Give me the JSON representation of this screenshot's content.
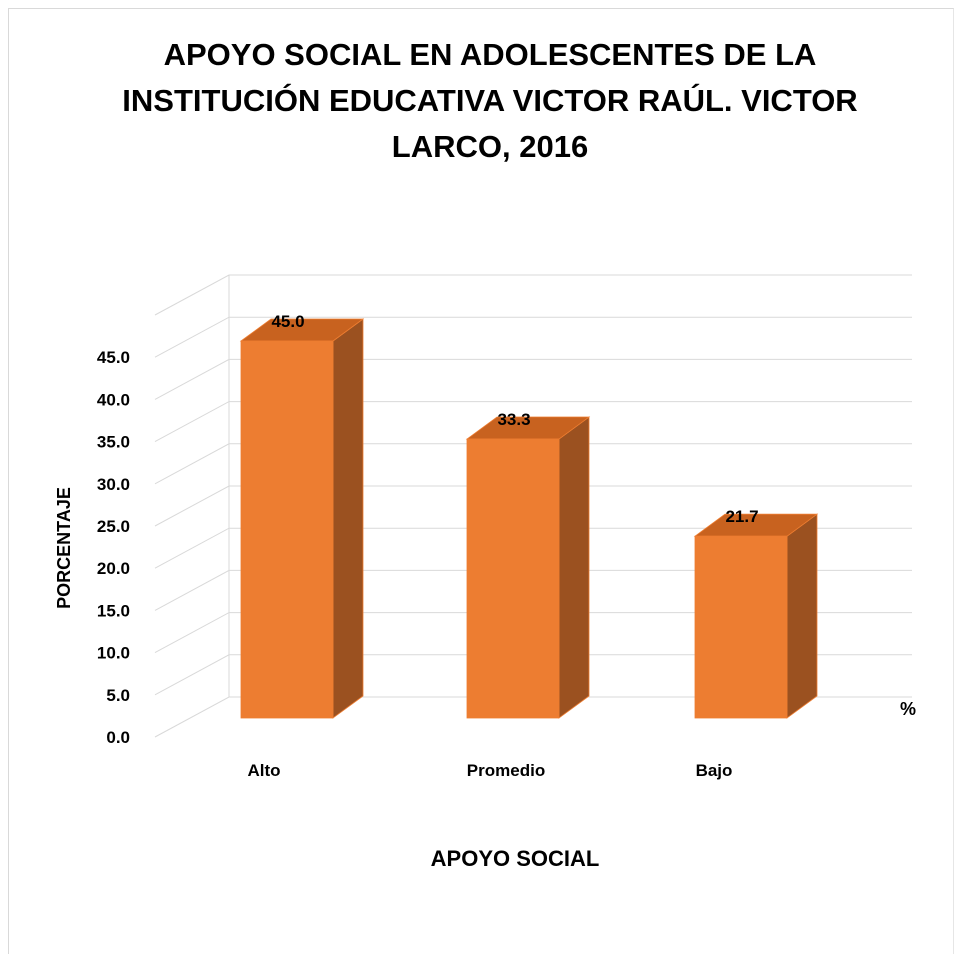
{
  "chart_data": {
    "type": "bar",
    "title": "APOYO SOCIAL EN ADOLESCENTES DE LA INSTITUCIÓN EDUCATIVA VICTOR RAÚL. VICTOR LARCO, 2016",
    "xlabel": "APOYO SOCIAL",
    "ylabel": "PORCENTAJE",
    "unit_label": "%",
    "categories": [
      "Alto",
      "Promedio",
      "Bajo"
    ],
    "values": [
      45.0,
      33.3,
      21.7
    ],
    "value_labels": [
      "45.0",
      "33.3",
      "21.7"
    ],
    "ylim": [
      0,
      45
    ],
    "yticks": [
      "0.0",
      "5.0",
      "10.0",
      "15.0",
      "20.0",
      "25.0",
      "30.0",
      "35.0",
      "40.0",
      "45.0"
    ],
    "grid": true,
    "legend": "none",
    "style": "3d-column",
    "colors": {
      "bar_front": "#ED7D31",
      "bar_side": "#9B5120",
      "bar_top": "#C8621F",
      "grid": "#d9d9d9"
    }
  }
}
